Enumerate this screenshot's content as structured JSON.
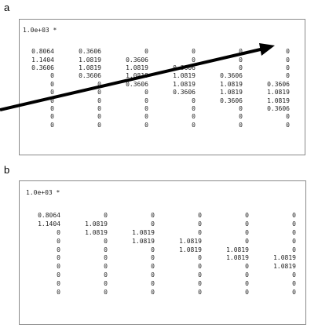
{
  "panel_a": {
    "label": "a",
    "scale": "1.0e+03 *",
    "rows": [
      [
        "0.8064",
        "0.3606",
        "0",
        "0",
        "0",
        "0"
      ],
      [
        "1.1404",
        "1.0819",
        "0.3606",
        "0",
        "0",
        "0"
      ],
      [
        "0.3606",
        "1.0819",
        "1.0819",
        "0.3606",
        "0",
        "0"
      ],
      [
        "0",
        "0.3606",
        "1.0819",
        "1.0819",
        "0.3606",
        "0"
      ],
      [
        "0",
        "0",
        "0.3606",
        "1.0819",
        "1.0819",
        "0.3606"
      ],
      [
        "0",
        "0",
        "0",
        "0.3606",
        "1.0819",
        "1.0819"
      ],
      [
        "0",
        "0",
        "0",
        "0",
        "0.3606",
        "1.0819"
      ],
      [
        "0",
        "0",
        "0",
        "0",
        "0",
        "0.3606"
      ],
      [
        "0",
        "0",
        "0",
        "0",
        "0",
        "0"
      ],
      [
        "0",
        "0",
        "0",
        "0",
        "0",
        "0"
      ]
    ]
  },
  "panel_b": {
    "label": "b",
    "scale": "1.0e+03 *",
    "rows": [
      [
        "0.8064",
        "0",
        "0",
        "0",
        "0",
        "0"
      ],
      [
        "1.1404",
        "1.0819",
        "0",
        "0",
        "0",
        "0"
      ],
      [
        "0",
        "1.0819",
        "1.0819",
        "0",
        "0",
        "0"
      ],
      [
        "0",
        "0",
        "1.0819",
        "1.0819",
        "0",
        "0"
      ],
      [
        "0",
        "0",
        "0",
        "1.0819",
        "1.0819",
        "0"
      ],
      [
        "0",
        "0",
        "0",
        "0",
        "1.0819",
        "1.0819"
      ],
      [
        "0",
        "0",
        "0",
        "0",
        "0",
        "1.0819"
      ],
      [
        "0",
        "0",
        "0",
        "0",
        "0",
        "0"
      ],
      [
        "0",
        "0",
        "0",
        "0",
        "0",
        "0"
      ],
      [
        "0",
        "0",
        "0",
        "0",
        "0",
        "0"
      ]
    ]
  },
  "annotation": {
    "arrow_color": "#000000"
  }
}
